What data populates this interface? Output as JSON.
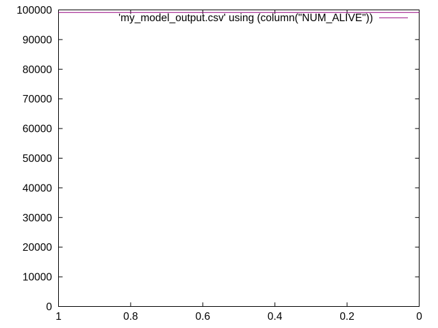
{
  "chart_data": {
    "type": "line",
    "title": "",
    "xlabel": "",
    "ylabel": "",
    "x_reversed": true,
    "xlim": [
      1,
      0
    ],
    "ylim": [
      0,
      100000
    ],
    "x_ticks": [
      1,
      0.8,
      0.6,
      0.4,
      0.2,
      0
    ],
    "x_tick_labels": [
      "1",
      "0.8",
      "0.6",
      "0.4",
      "0.2",
      "0"
    ],
    "y_ticks": [
      0,
      10000,
      20000,
      30000,
      40000,
      50000,
      60000,
      70000,
      80000,
      90000,
      100000
    ],
    "y_tick_labels": [
      "0",
      "10000",
      "20000",
      "30000",
      "40000",
      "50000",
      "60000",
      "70000",
      "80000",
      "90000",
      "100000"
    ],
    "grid": false,
    "legend": "top-right",
    "series": [
      {
        "name": "'my_model_output.csv' using (column(\"NUM_ALIVE\"))",
        "color": "#94007f",
        "x": [
          1,
          0
        ],
        "y": [
          99150,
          99150
        ]
      }
    ]
  }
}
